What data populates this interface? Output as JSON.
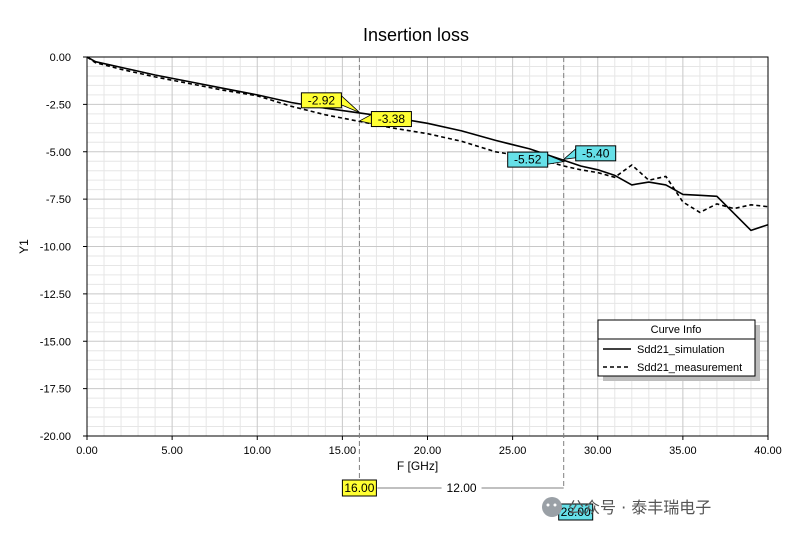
{
  "chart_data": {
    "type": "line",
    "title": "Insertion loss",
    "xlabel": "F [GHz]",
    "ylabel": "Y1",
    "xlim": [
      0,
      40
    ],
    "ylim": [
      -20,
      0
    ],
    "x_ticks": [
      "0.00",
      "5.00",
      "10.00",
      "15.00",
      "20.00",
      "25.00",
      "30.00",
      "35.00",
      "40.00"
    ],
    "y_ticks": [
      "0.00",
      "-2.50",
      "-5.00",
      "-7.50",
      "-10.00",
      "-12.50",
      "-15.00",
      "-17.50",
      "-20.00"
    ],
    "grid": true,
    "series": [
      {
        "name": "Sdd21_simulation",
        "line_style": "solid",
        "color": "#000000",
        "x": [
          0,
          0.5,
          2,
          4,
          6,
          8,
          10,
          12,
          14,
          16,
          18,
          20,
          22,
          24,
          26,
          27,
          28,
          29,
          30,
          31,
          32,
          33,
          34,
          35,
          36,
          37,
          38,
          39,
          40
        ],
        "y": [
          0,
          -0.25,
          -0.55,
          -0.95,
          -1.3,
          -1.65,
          -2.0,
          -2.4,
          -2.7,
          -2.95,
          -3.2,
          -3.5,
          -3.9,
          -4.4,
          -4.85,
          -5.15,
          -5.45,
          -5.75,
          -5.95,
          -6.25,
          -6.75,
          -6.6,
          -6.75,
          -7.25,
          -7.3,
          -7.35,
          -8.25,
          -9.15,
          -8.85
        ]
      },
      {
        "name": "Sdd21_measurement",
        "line_style": "dashed",
        "color": "#000000",
        "x": [
          0,
          0.5,
          2,
          4,
          6,
          8,
          10,
          12,
          14,
          16,
          18,
          20,
          22,
          24,
          26,
          27,
          28,
          29,
          30,
          31,
          32,
          33,
          34,
          35,
          36,
          37,
          38,
          39,
          40
        ],
        "y": [
          0,
          -0.3,
          -0.65,
          -1.05,
          -1.4,
          -1.75,
          -2.05,
          -2.6,
          -3.05,
          -3.4,
          -3.75,
          -4.05,
          -4.45,
          -5.0,
          -5.3,
          -5.5,
          -5.75,
          -5.95,
          -6.1,
          -6.35,
          -5.7,
          -6.5,
          -6.3,
          -7.65,
          -8.2,
          -7.75,
          -8.0,
          -7.8,
          -7.9
        ]
      }
    ],
    "vertical_markers": [
      {
        "x": 16,
        "label": "16.00",
        "label_color": "#ffff33"
      },
      {
        "x": 28,
        "label": "28.00",
        "label_color": "#66e0e8"
      }
    ],
    "marker_delta_label": "12.00",
    "point_markers": [
      {
        "x": 16,
        "y": -2.92,
        "label": "-2.92",
        "color": "#ffff33"
      },
      {
        "x": 16,
        "y": -3.38,
        "label": "-3.38",
        "color": "#ffff33"
      },
      {
        "x": 28,
        "y": -5.52,
        "label": "-5.52",
        "color": "#66e0e8"
      },
      {
        "x": 28,
        "y": -5.4,
        "label": "-5.40",
        "color": "#66e0e8"
      }
    ],
    "legend": {
      "title": "Curve Info",
      "placement": "bottom-right"
    }
  },
  "watermark": "公众号 · 泰丰瑞电子"
}
